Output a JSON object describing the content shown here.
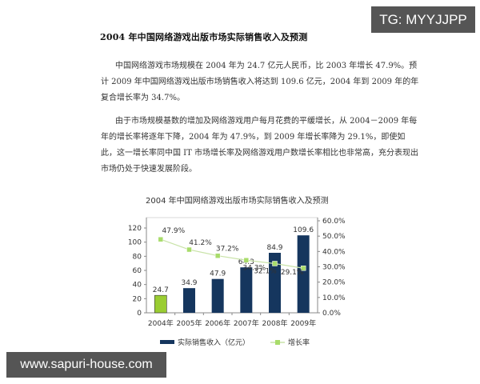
{
  "document": {
    "title": "2004 年中国网络游戏出版市场实际销售收入及预测",
    "paragraph1": "中国网络游戏市场规模在 2004 年为 24.7 亿元人民币，比 2003 年增长 47.9%。预计 2009 年中国网络游戏出版市场销售收入将达到 109.6 亿元，2004 年到 2009 年的年复合增长率为 34.7%。",
    "paragraph2": "由于市场规模基数的增加及网络游戏用户每月花费的平缓增长，从 2004－2009 年每年的增长率将逐年下降，2004 年为 47.9%，到 2009 年增长率降为 29.1%，即使如此，这一增长率同中国 IT 市场增长率及网络游戏用户数增长率相比也非常高，充分表现出市场仍处于快速发展阶段。"
  },
  "watermarks": {
    "tg": "TG: MYYJJPP",
    "url": "www.sapuri-house.com"
  },
  "colors": {
    "bar_primary": "#15365e",
    "bar_highlight": "#9acd32",
    "line": "#c9e3a8",
    "marker": "#a8dc6a"
  },
  "chart_data": {
    "type": "bar",
    "title": "2004 年中国网络游戏出版市场实际销售收入及预测",
    "categories": [
      "2004年",
      "2005年",
      "2006年",
      "2007年",
      "2008年",
      "2009年"
    ],
    "series": [
      {
        "name": "实际销售收入（亿元）",
        "type": "bar",
        "axis": "left",
        "values": [
          24.7,
          34.9,
          47.9,
          64.3,
          84.9,
          109.6
        ],
        "labels": [
          "24.7",
          "34.9",
          "47.9",
          "64.3",
          "84.9",
          "109.6"
        ]
      },
      {
        "name": "增长率",
        "type": "line",
        "axis": "right",
        "values": [
          47.9,
          41.2,
          37.2,
          34.3,
          32.1,
          29.1
        ],
        "labels": [
          "47.9%",
          "41.2%",
          "37.2%",
          "34.3%",
          "32.1%",
          "29.1%"
        ]
      }
    ],
    "left_axis": {
      "ylim": [
        0,
        120
      ],
      "ticks": [
        "0",
        "20",
        "40",
        "60",
        "80",
        "100",
        "120"
      ]
    },
    "right_axis": {
      "ylim": [
        0,
        60
      ],
      "ticks": [
        "0.0%",
        "10.0%",
        "20.0%",
        "30.0%",
        "40.0%",
        "50.0%",
        "60.0%"
      ]
    },
    "xlabel": "",
    "ylabel": "",
    "grid": false,
    "legend_position": "bottom",
    "legend": [
      "实际销售收入（亿元）",
      "增长率"
    ]
  }
}
